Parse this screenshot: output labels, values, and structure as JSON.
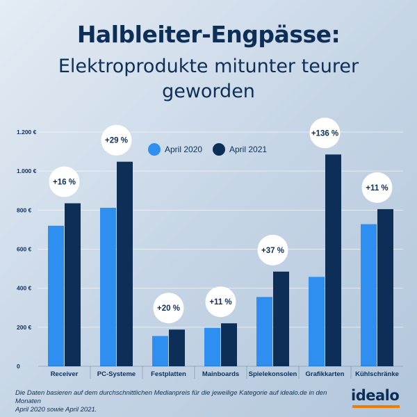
{
  "header": {
    "title": "Halbleiter-Engpässe:",
    "subtitle_line1": "Elektroprodukte mitunter teurer",
    "subtitle_line2": "geworden"
  },
  "chart_data": {
    "type": "bar",
    "categories": [
      "Receiver",
      "PC-Systeme",
      "Festplatten",
      "Mainboards",
      "Spielekonsolen",
      "Grafikkarten",
      "Kühlschränke"
    ],
    "series": [
      {
        "name": "April 2020",
        "color": "#2e8ff0",
        "values": [
          720,
          812,
          155,
          197,
          355,
          458,
          728
        ]
      },
      {
        "name": "April 2021",
        "color": "#0d2f57",
        "values": [
          835,
          1048,
          188,
          220,
          485,
          1085,
          805
        ]
      }
    ],
    "change_labels": [
      "+16 %",
      "+29 %",
      "+20 %",
      "+11 %",
      "+37 %",
      "+136 %",
      "+11 %"
    ],
    "ylim": [
      0,
      1200
    ],
    "yticks": [
      0,
      200,
      400,
      600,
      800,
      1000,
      1200
    ],
    "ytick_labels": [
      "0",
      "200 €",
      "400 €",
      "600 €",
      "800 €",
      "1.000 €",
      "1.200 €"
    ],
    "grid": true,
    "legend_position": "top-center"
  },
  "footer": {
    "note_line1": "Die Daten basieren auf dem durchschnittlichen Medianpreis für die jeweilige Kategorie auf idealo.de in den Monaten",
    "note_line2": "April 2020 sowie April 2021.",
    "logo_text": "idealo",
    "logo_accent_color": "#f07d00"
  }
}
